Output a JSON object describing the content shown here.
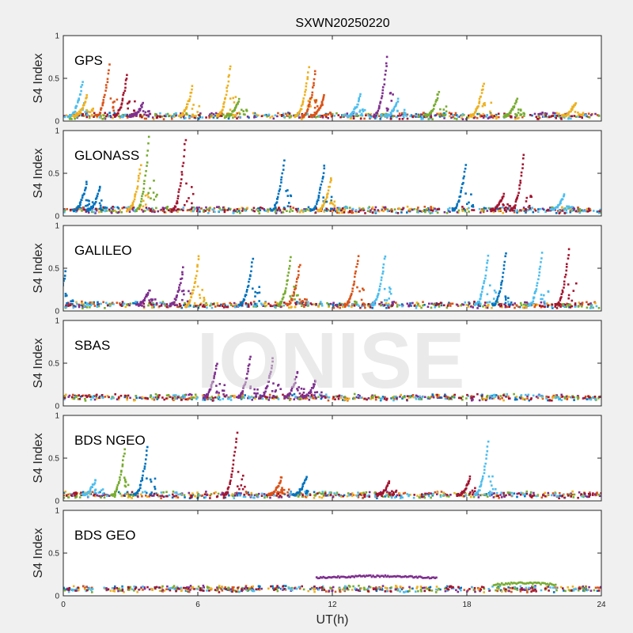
{
  "chart_data": {
    "type": "scatter",
    "title": "SXWN20250220",
    "xlabel": "UT(h)",
    "xlim": [
      0,
      24
    ],
    "x_ticks": [
      "0",
      "6",
      "12",
      "18",
      "24"
    ],
    "watermark": "IONISE",
    "series_colors": [
      "#0072BD",
      "#D95319",
      "#EDB120",
      "#7E2F8E",
      "#77AC30",
      "#4DBEEE",
      "#A2142F"
    ],
    "panels": [
      {
        "label": "GPS",
        "ylabel": "S4 Index",
        "ylim": [
          0,
          1
        ],
        "y_ticks": [
          "0",
          "0.5",
          "1"
        ],
        "baseline": 0.06,
        "spikes": [
          {
            "x": 0.8,
            "peak": 0.45,
            "color": 5
          },
          {
            "x": 1.0,
            "peak": 0.3,
            "color": 2
          },
          {
            "x": 2.0,
            "peak": 0.65,
            "color": 1
          },
          {
            "x": 2.8,
            "peak": 0.55,
            "color": 6
          },
          {
            "x": 3.5,
            "peak": 0.2,
            "color": 3
          },
          {
            "x": 5.7,
            "peak": 0.4,
            "color": 2
          },
          {
            "x": 7.4,
            "peak": 0.65,
            "color": 2
          },
          {
            "x": 7.8,
            "peak": 0.25,
            "color": 4
          },
          {
            "x": 10.9,
            "peak": 0.62,
            "color": 2
          },
          {
            "x": 11.2,
            "peak": 0.58,
            "color": 1
          },
          {
            "x": 11.6,
            "peak": 0.3,
            "color": 1
          },
          {
            "x": 13.2,
            "peak": 0.3,
            "color": 5
          },
          {
            "x": 14.4,
            "peak": 0.75,
            "color": 3
          },
          {
            "x": 14.9,
            "peak": 0.25,
            "color": 5
          },
          {
            "x": 16.7,
            "peak": 0.35,
            "color": 4
          },
          {
            "x": 18.7,
            "peak": 0.45,
            "color": 2
          },
          {
            "x": 20.2,
            "peak": 0.25,
            "color": 4
          },
          {
            "x": 22.8,
            "peak": 0.22,
            "color": 2
          }
        ]
      },
      {
        "label": "GLONASS",
        "ylabel": "S4 Index",
        "ylim": [
          0,
          1
        ],
        "y_ticks": [
          "0",
          "0.5",
          "1"
        ],
        "baseline": 0.07,
        "spikes": [
          {
            "x": 1.0,
            "peak": 0.4,
            "color": 0
          },
          {
            "x": 1.6,
            "peak": 0.35,
            "color": 0
          },
          {
            "x": 3.4,
            "peak": 0.6,
            "color": 2
          },
          {
            "x": 3.8,
            "peak": 1.0,
            "color": 4
          },
          {
            "x": 5.4,
            "peak": 0.9,
            "color": 6
          },
          {
            "x": 9.8,
            "peak": 0.65,
            "color": 0
          },
          {
            "x": 11.6,
            "peak": 0.6,
            "color": 0
          },
          {
            "x": 11.9,
            "peak": 0.45,
            "color": 2
          },
          {
            "x": 17.9,
            "peak": 0.6,
            "color": 0
          },
          {
            "x": 19.6,
            "peak": 0.25,
            "color": 6
          },
          {
            "x": 20.5,
            "peak": 0.72,
            "color": 6
          },
          {
            "x": 22.3,
            "peak": 0.25,
            "color": 5
          }
        ]
      },
      {
        "label": "GALILEO",
        "ylabel": "S4 Index",
        "ylim": [
          0,
          1
        ],
        "y_ticks": [
          "0",
          "0.5",
          "1"
        ],
        "baseline": 0.07,
        "spikes": [
          {
            "x": 0.05,
            "peak": 0.45,
            "color": 0
          },
          {
            "x": 3.8,
            "peak": 0.25,
            "color": 3
          },
          {
            "x": 5.3,
            "peak": 0.5,
            "color": 3
          },
          {
            "x": 6.0,
            "peak": 0.65,
            "color": 2
          },
          {
            "x": 8.4,
            "peak": 0.6,
            "color": 0
          },
          {
            "x": 10.1,
            "peak": 0.62,
            "color": 4
          },
          {
            "x": 10.5,
            "peak": 0.55,
            "color": 1
          },
          {
            "x": 13.1,
            "peak": 0.65,
            "color": 1
          },
          {
            "x": 14.3,
            "peak": 0.65,
            "color": 5
          },
          {
            "x": 18.9,
            "peak": 0.65,
            "color": 5
          },
          {
            "x": 19.7,
            "peak": 0.68,
            "color": 0
          },
          {
            "x": 21.3,
            "peak": 0.68,
            "color": 5
          },
          {
            "x": 22.5,
            "peak": 0.72,
            "color": 6
          }
        ]
      },
      {
        "label": "SBAS",
        "ylabel": "S4 Index",
        "ylim": [
          0,
          1
        ],
        "y_ticks": [
          "0",
          "0.5",
          "1"
        ],
        "baseline": 0.1,
        "spikes": [
          {
            "x": 6.8,
            "peak": 0.5,
            "color": 3
          },
          {
            "x": 8.3,
            "peak": 0.58,
            "color": 3
          },
          {
            "x": 9.3,
            "peak": 0.55,
            "color": 3
          },
          {
            "x": 10.4,
            "peak": 0.4,
            "color": 3
          },
          {
            "x": 11.2,
            "peak": 0.3,
            "color": 3
          }
        ]
      },
      {
        "label": "BDS NGEO",
        "ylabel": "S4 Index",
        "ylim": [
          0,
          1
        ],
        "y_ticks": [
          "0",
          "0.5",
          "1"
        ],
        "baseline": 0.07,
        "spikes": [
          {
            "x": 1.4,
            "peak": 0.25,
            "color": 5
          },
          {
            "x": 2.7,
            "peak": 0.6,
            "color": 4
          },
          {
            "x": 3.7,
            "peak": 0.62,
            "color": 0
          },
          {
            "x": 7.7,
            "peak": 0.8,
            "color": 6
          },
          {
            "x": 9.7,
            "peak": 0.28,
            "color": 1
          },
          {
            "x": 10.8,
            "peak": 0.28,
            "color": 0
          },
          {
            "x": 14.5,
            "peak": 0.22,
            "color": 6
          },
          {
            "x": 18.1,
            "peak": 0.28,
            "color": 6
          },
          {
            "x": 18.9,
            "peak": 0.68,
            "color": 5
          }
        ]
      },
      {
        "label": "BDS GEO",
        "ylabel": "S4 Index",
        "ylim": [
          0,
          1
        ],
        "y_ticks": [
          "0",
          "0.5",
          "1"
        ],
        "baseline": 0.08,
        "arcs": [
          {
            "x0": 11.3,
            "x1": 16.7,
            "y": 0.21,
            "color": 3
          },
          {
            "x0": 19.2,
            "x1": 22.0,
            "y": 0.13,
            "color": 4
          }
        ],
        "spikes": []
      }
    ]
  }
}
